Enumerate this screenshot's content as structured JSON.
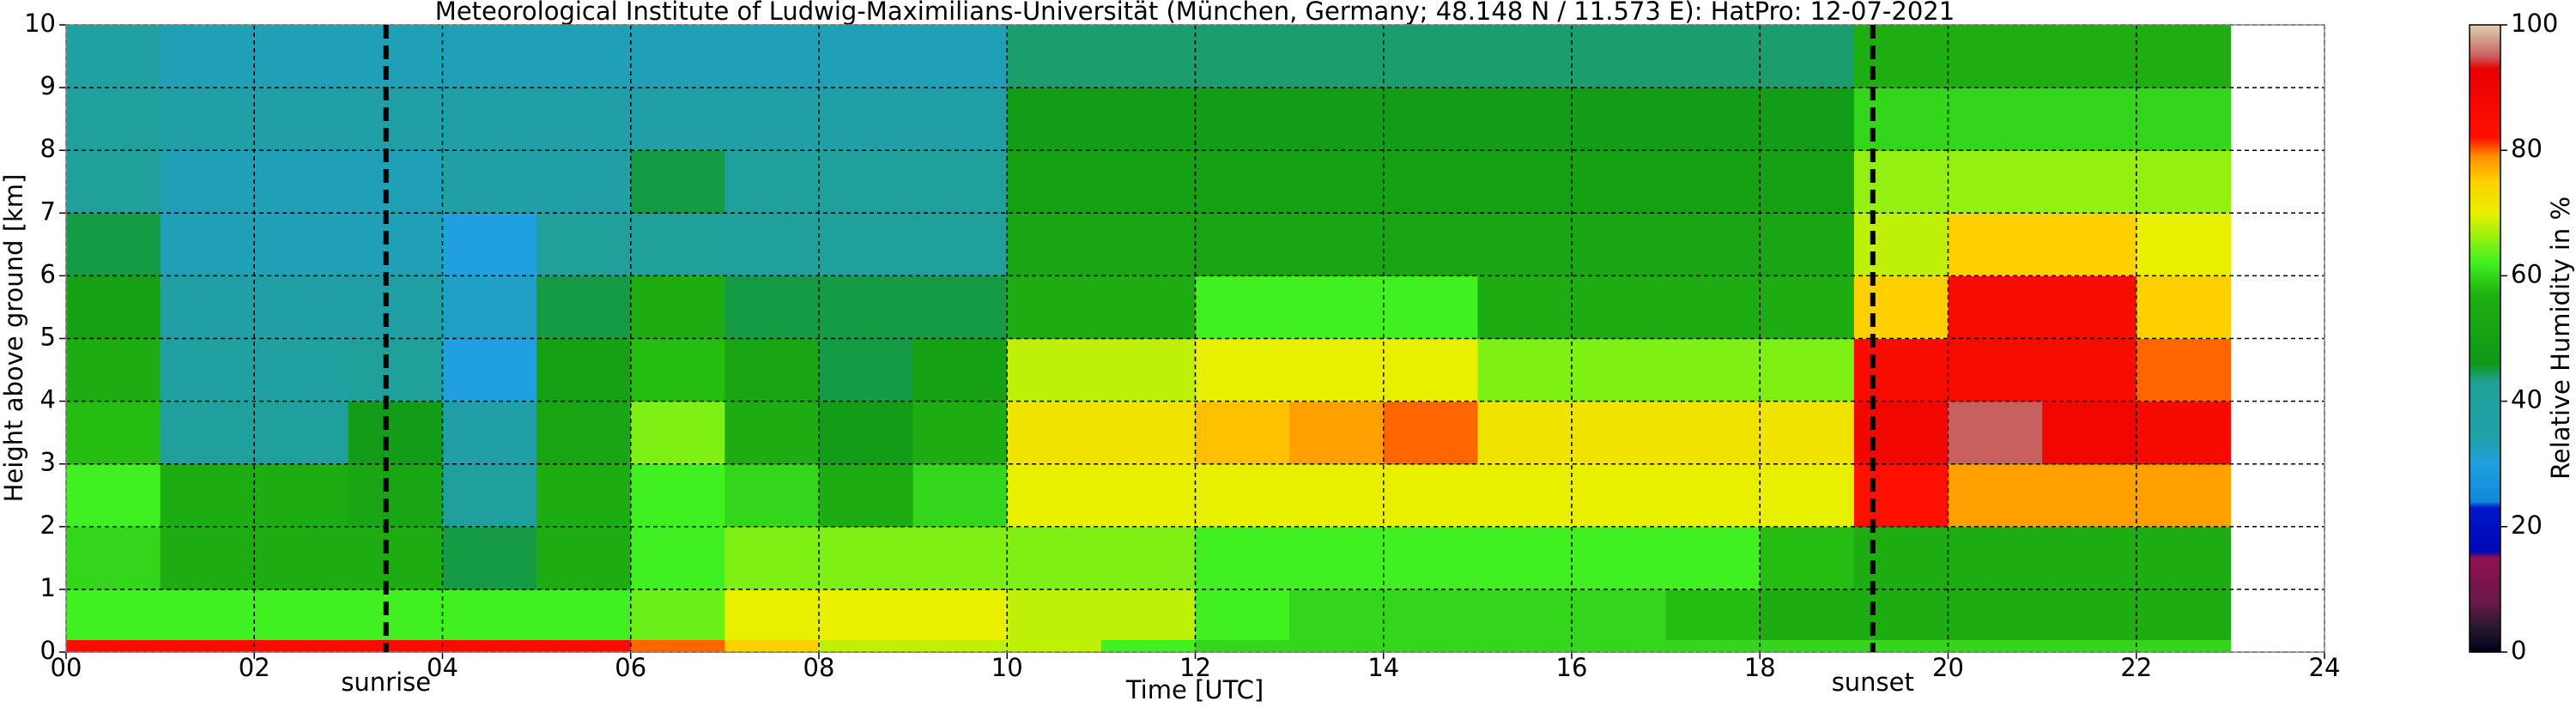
{
  "chart_data": {
    "type": "heatmap",
    "title": "Meteorological Institute of Ludwig-Maximilians-Universität (München, Germany; 48.148 N / 11.573 E):    HatPro: 12-07-2021",
    "xlabel": "Time [UTC]",
    "ylabel": "Height above ground [km]",
    "colorbar_label": "Relative Humidity in %",
    "xlim": [
      0,
      24
    ],
    "ylim": [
      0,
      10
    ],
    "xticks": [
      {
        "value": 0,
        "label": "00"
      },
      {
        "value": 2,
        "label": "02"
      },
      {
        "value": 4,
        "label": "04"
      },
      {
        "value": 6,
        "label": "06"
      },
      {
        "value": 8,
        "label": "08"
      },
      {
        "value": 10,
        "label": "10"
      },
      {
        "value": 12,
        "label": "12"
      },
      {
        "value": 14,
        "label": "14"
      },
      {
        "value": 16,
        "label": "16"
      },
      {
        "value": 18,
        "label": "18"
      },
      {
        "value": 20,
        "label": "20"
      },
      {
        "value": 22,
        "label": "22"
      },
      {
        "value": 24,
        "label": "24"
      }
    ],
    "yticks": [
      0,
      1,
      2,
      3,
      4,
      5,
      6,
      7,
      8,
      9,
      10
    ],
    "grid": true,
    "clim": [
      0,
      100
    ],
    "cticks": [
      0,
      20,
      40,
      60,
      80,
      100
    ],
    "colorscale": [
      [
        0,
        "#000018"
      ],
      [
        4,
        "#2a1830"
      ],
      [
        8,
        "#6a1848"
      ],
      [
        15,
        "#901050"
      ],
      [
        16,
        "#0008b8"
      ],
      [
        23,
        "#0018c8"
      ],
      [
        24,
        "#1088d8"
      ],
      [
        30,
        "#20a0e0"
      ],
      [
        34,
        "#20a0a8"
      ],
      [
        43,
        "#20a098"
      ],
      [
        46,
        "#109818"
      ],
      [
        57,
        "#20b010"
      ],
      [
        62,
        "#40f020"
      ],
      [
        70,
        "#e8f000"
      ],
      [
        75,
        "#ffd000"
      ],
      [
        79,
        "#ff9000"
      ],
      [
        82,
        "#ff1000"
      ],
      [
        93,
        "#e80000"
      ],
      [
        95,
        "#c86060"
      ],
      [
        100,
        "#e0d0b0"
      ]
    ],
    "x_bins": [
      0,
      1,
      2,
      3,
      4,
      5,
      6,
      7,
      8,
      9,
      10,
      11,
      12,
      13,
      14,
      15,
      16,
      17,
      18,
      19,
      20,
      21,
      22,
      23
    ],
    "y_bins": [
      0,
      0.2,
      1,
      2,
      3,
      4,
      5,
      6,
      7,
      8,
      9,
      10
    ],
    "values": [
      [
        85,
        85,
        85,
        85,
        85,
        85,
        80,
        75,
        68,
        68,
        68,
        62,
        60,
        60,
        60,
        60,
        60,
        60,
        60,
        60,
        60,
        60,
        60
      ],
      [
        62,
        62,
        62,
        62,
        62,
        62,
        64,
        70,
        70,
        70,
        68,
        68,
        62,
        60,
        60,
        60,
        60,
        58,
        55,
        55,
        55,
        55,
        55
      ],
      [
        60,
        55,
        55,
        55,
        45,
        55,
        62,
        65,
        65,
        65,
        65,
        65,
        62,
        62,
        62,
        62,
        62,
        62,
        58,
        55,
        55,
        55,
        55
      ],
      [
        62,
        55,
        55,
        52,
        40,
        55,
        62,
        60,
        55,
        60,
        70,
        70,
        70,
        70,
        70,
        70,
        70,
        70,
        70,
        82,
        78,
        78,
        78
      ],
      [
        58,
        40,
        40,
        48,
        35,
        52,
        65,
        55,
        48,
        55,
        72,
        72,
        76,
        78,
        80,
        72,
        72,
        72,
        72,
        88,
        95,
        88,
        86
      ],
      [
        55,
        38,
        38,
        42,
        30,
        50,
        58,
        52,
        45,
        50,
        68,
        68,
        70,
        70,
        70,
        65,
        65,
        65,
        65,
        85,
        85,
        85,
        80
      ],
      [
        50,
        36,
        36,
        36,
        32,
        45,
        55,
        45,
        45,
        45,
        55,
        55,
        62,
        62,
        62,
        55,
        55,
        55,
        55,
        75,
        85,
        85,
        75
      ],
      [
        45,
        33,
        33,
        33,
        30,
        42,
        42,
        40,
        40,
        40,
        52,
        52,
        52,
        52,
        52,
        52,
        52,
        52,
        52,
        68,
        75,
        75,
        70
      ],
      [
        42,
        33,
        33,
        33,
        36,
        36,
        45,
        40,
        40,
        40,
        50,
        50,
        50,
        50,
        50,
        50,
        50,
        50,
        50,
        66,
        66,
        66,
        66
      ],
      [
        40,
        35,
        35,
        35,
        35,
        35,
        35,
        35,
        35,
        35,
        48,
        48,
        48,
        48,
        48,
        48,
        48,
        48,
        48,
        60,
        60,
        60,
        60
      ],
      [
        38,
        33,
        33,
        33,
        33,
        33,
        33,
        33,
        33,
        33,
        44,
        44,
        44,
        44,
        44,
        44,
        44,
        44,
        44,
        56,
        56,
        56,
        56
      ]
    ],
    "annotations": [
      {
        "x": 3.4,
        "label": "sunrise"
      },
      {
        "x": 19.2,
        "label": "sunset"
      }
    ]
  }
}
